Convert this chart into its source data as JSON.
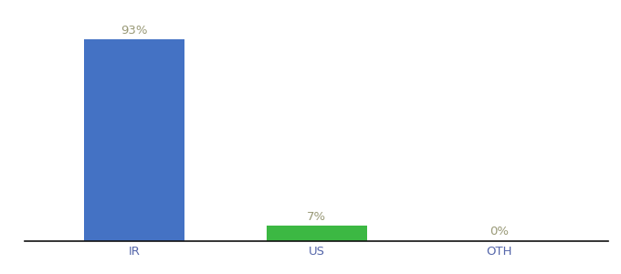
{
  "categories": [
    "IR",
    "US",
    "OTH"
  ],
  "values": [
    93,
    7,
    0
  ],
  "labels": [
    "93%",
    "7%",
    "0%"
  ],
  "bar_colors": [
    "#4472C4",
    "#3CB843",
    "#4472C4"
  ],
  "background_color": "#ffffff",
  "ylim": [
    0,
    105
  ],
  "bar_width": 0.55,
  "label_fontsize": 9.5,
  "tick_fontsize": 9.5,
  "label_color": "#999977",
  "tick_color": "#5566aa",
  "spine_color": "#111111",
  "spine_linewidth": 1.2
}
